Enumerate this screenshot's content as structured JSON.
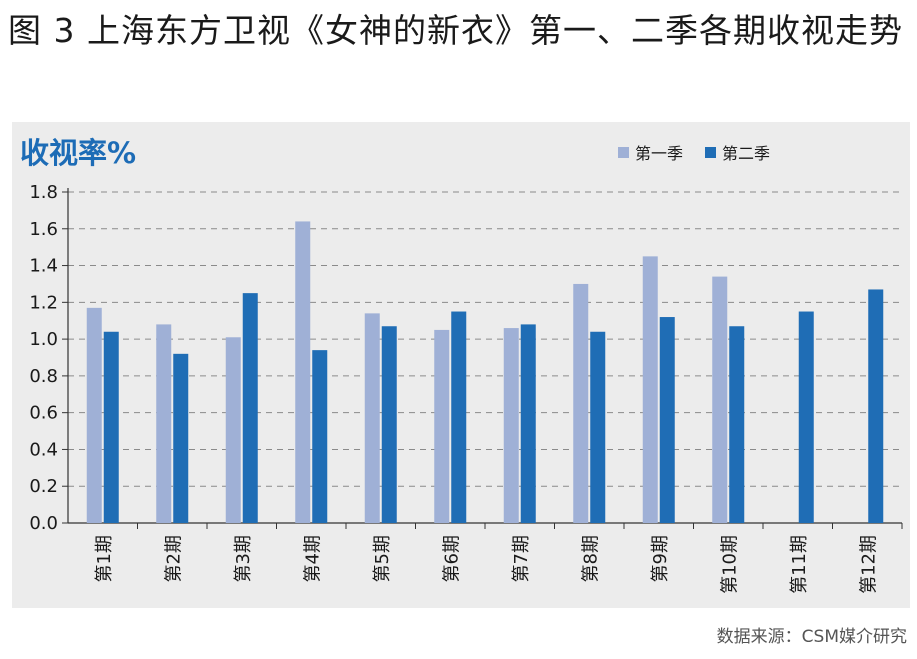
{
  "figure": {
    "title": "图 3 上海东方卫视《女神的新衣》第一、二季各期收视走势",
    "panel_label": "收视率%",
    "source": "数据来源：CSM媒介研究"
  },
  "colors": {
    "season1": "#9fb0d6",
    "season2": "#1f6db5",
    "grid": "#8a8a8a",
    "axis": "#333333",
    "panel_bg": "#ececec"
  },
  "chart_data": {
    "type": "bar",
    "title": "",
    "xlabel": "",
    "ylabel": "收视率%",
    "ylim": [
      0,
      1.8
    ],
    "yticks": [
      "0.0",
      "0.2",
      "0.4",
      "0.6",
      "0.8",
      "1.0",
      "1.2",
      "1.4",
      "1.6",
      "1.8"
    ],
    "grid": "horizontal dashed",
    "legend_position": "top-right",
    "categories": [
      "第1期",
      "第2期",
      "第3期",
      "第4期",
      "第5期",
      "第6期",
      "第7期",
      "第8期",
      "第9期",
      "第10期",
      "第11期",
      "第12期"
    ],
    "series": [
      {
        "name": "第一季",
        "values": [
          1.17,
          1.08,
          1.01,
          1.64,
          1.14,
          1.05,
          1.06,
          1.3,
          1.45,
          1.34,
          null,
          null
        ]
      },
      {
        "name": "第二季",
        "values": [
          1.04,
          0.92,
          1.25,
          0.94,
          1.07,
          1.15,
          1.08,
          1.04,
          1.12,
          1.07,
          1.15,
          1.27
        ]
      }
    ]
  }
}
